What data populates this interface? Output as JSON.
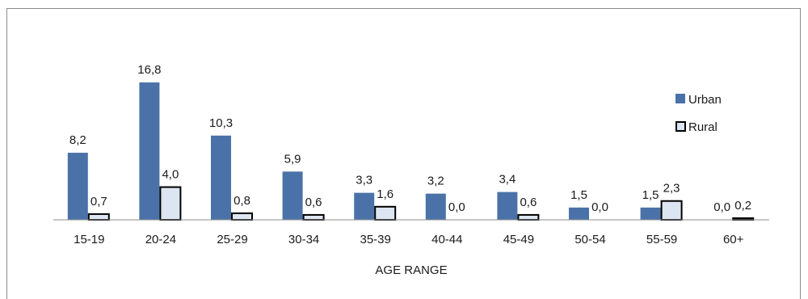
{
  "chart_data": {
    "type": "bar",
    "categories": [
      "15-19",
      "20-24",
      "25-29",
      "30-34",
      "35-39",
      "40-44",
      "45-49",
      "50-54",
      "55-59",
      "60+"
    ],
    "series": [
      {
        "name": "Urban",
        "values": [
          8.2,
          16.8,
          10.3,
          5.9,
          3.3,
          3.2,
          3.4,
          1.5,
          1.5,
          0.0
        ],
        "labels": [
          "8,2",
          "16,8",
          "10,3",
          "5,9",
          "3,3",
          "3,2",
          "3,4",
          "1,5",
          "1,5",
          "0,0"
        ],
        "color": "#4a72a8"
      },
      {
        "name": "Rural",
        "values": [
          0.7,
          4.0,
          0.8,
          0.6,
          1.6,
          0.0,
          0.6,
          0.0,
          2.3,
          0.2
        ],
        "labels": [
          "0,7",
          "4,0",
          "0,8",
          "0,6",
          "1,6",
          "0,0",
          "0,6",
          "0,0",
          "2,3",
          "0,2"
        ],
        "color": "#dce6f2",
        "border": "#000000"
      }
    ],
    "title": "",
    "xlabel": "AGE RANGE",
    "ylabel": "",
    "ylim": [
      0,
      18
    ],
    "grid": false,
    "legend_position": "top-right"
  }
}
